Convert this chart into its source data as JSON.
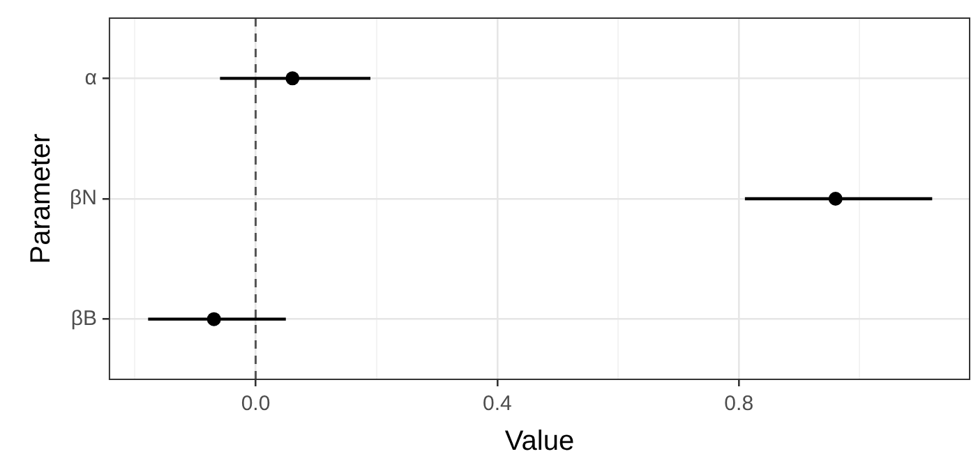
{
  "chart_data": {
    "type": "scatter",
    "orientation": "horizontal",
    "xlabel": "Value",
    "ylabel": "Parameter",
    "categories": [
      "α",
      "βN",
      "βB"
    ],
    "series": [
      {
        "color": "#000000",
        "values": [
          0.061,
          0.96,
          -0.069
        ],
        "errors": [
          [
            -0.059,
            0.19
          ],
          [
            0.81,
            1.12
          ],
          [
            -0.178,
            0.05
          ]
        ]
      }
    ],
    "xlim": [
      -0.242,
      1.182
    ],
    "xticks": [
      {
        "value": -0.2,
        "label": null
      },
      {
        "value": 0,
        "label": "0.0"
      },
      {
        "value": 0.2,
        "label": null
      },
      {
        "value": 0.4,
        "label": "0.4"
      },
      {
        "value": 0.6,
        "label": null
      },
      {
        "value": 0.8,
        "label": "0.8"
      },
      {
        "value": 1.0,
        "label": null
      }
    ],
    "ref_lines": [
      {
        "axis": "x",
        "value": 0,
        "color": "#555555",
        "line_style": "dashed"
      }
    ],
    "grid": true,
    "marker": "circle",
    "legend": false
  }
}
